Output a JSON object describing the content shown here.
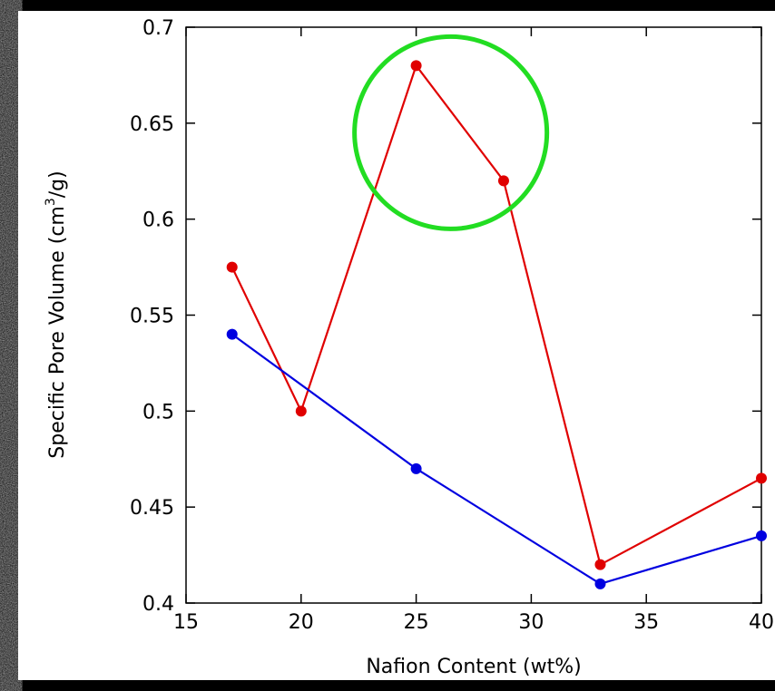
{
  "chart_data": {
    "type": "line",
    "xlabel": "Nafion Content (wt%)",
    "ylabel": "Specific Pore Volume (cm³/g)",
    "ylabel_main": "Specific Pore Volume (cm",
    "ylabel_sup": "3",
    "ylabel_tail": "/g)",
    "xlim": [
      15,
      40
    ],
    "ylim": [
      0.4,
      0.7
    ],
    "x_ticks": [
      15,
      20,
      25,
      30,
      35,
      40
    ],
    "x_tick_labels": [
      "15",
      "20",
      "25",
      "30",
      "35",
      "40"
    ],
    "y_ticks": [
      0.4,
      0.45,
      0.5,
      0.55,
      0.6,
      0.65,
      0.7
    ],
    "y_tick_labels": [
      "0.4",
      "0.45",
      "0.5",
      "0.55",
      "0.6",
      "0.65",
      "0.7"
    ],
    "grid": false,
    "series": [
      {
        "color": "#e00000",
        "x": [
          17,
          20,
          25,
          28.8,
          33,
          40
        ],
        "y": [
          0.575,
          0.5,
          0.68,
          0.62,
          0.42,
          0.465
        ]
      },
      {
        "color": "#0000e0",
        "x": [
          17,
          25,
          33,
          40
        ],
        "y": [
          0.54,
          0.47,
          0.41,
          0.435
        ]
      }
    ],
    "annotation": {
      "shape": "circle",
      "color": "#22dd22",
      "center": {
        "x": 26.5,
        "y": 0.645
      }
    }
  }
}
